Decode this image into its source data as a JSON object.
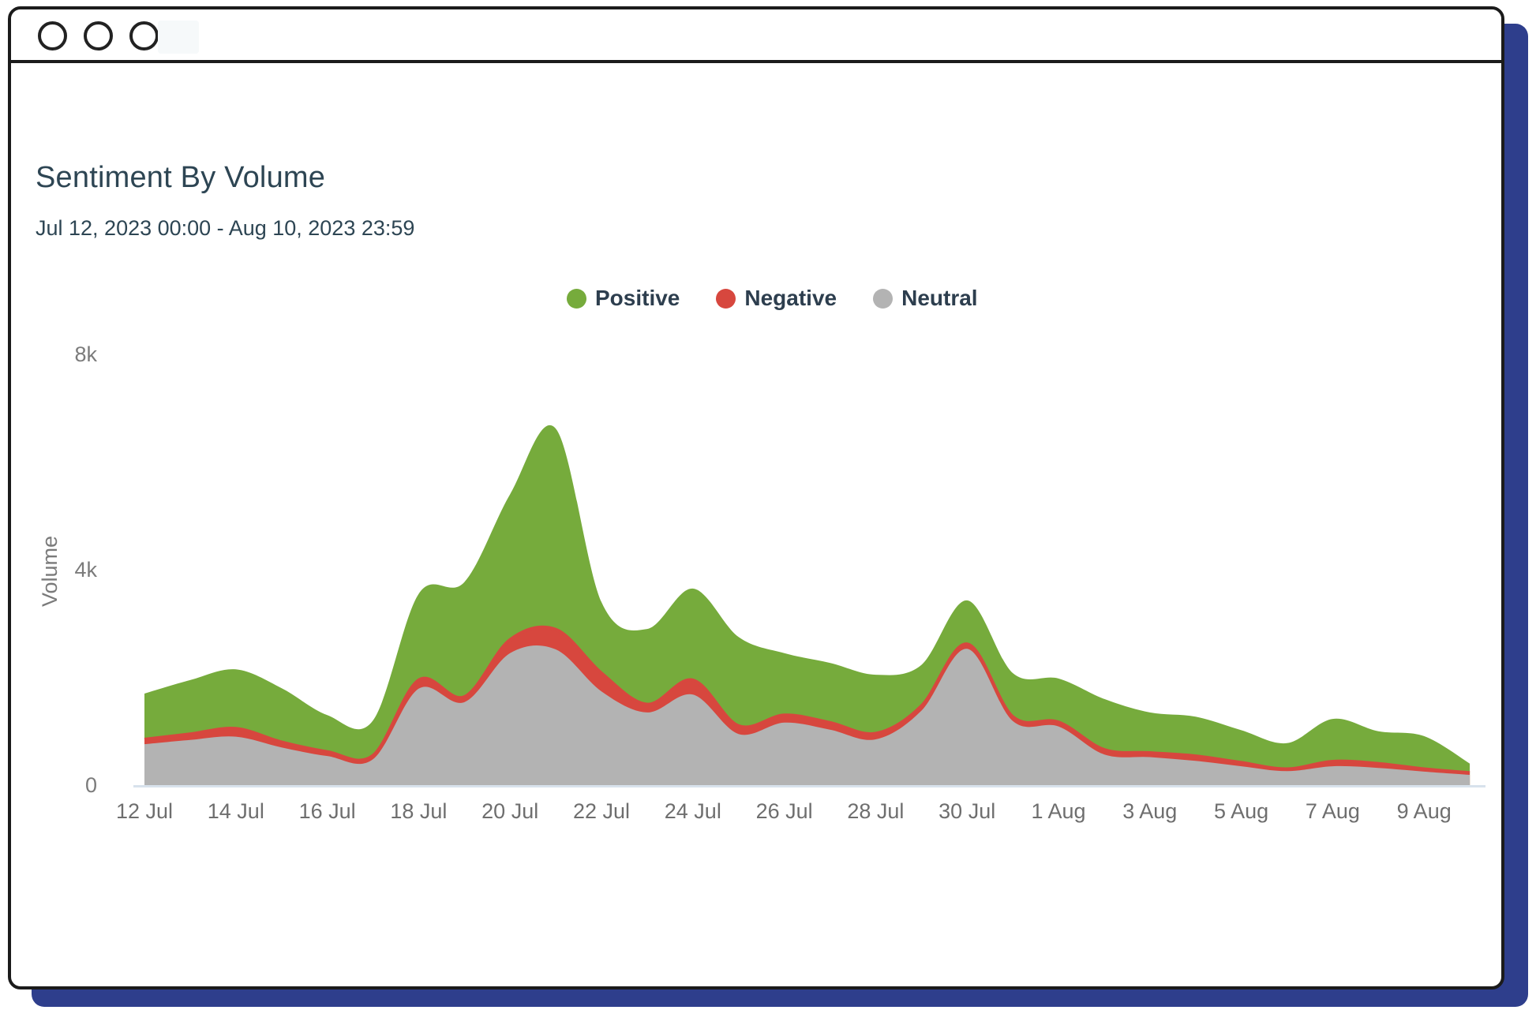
{
  "window": {
    "traffic_lights": [
      "close",
      "minimize",
      "maximize"
    ]
  },
  "header": {
    "title": "Sentiment By Volume",
    "subtitle": "Jul 12, 2023 00:00 - Aug 10, 2023 23:59"
  },
  "legend": [
    {
      "label": "Positive",
      "color": "#76ab3c"
    },
    {
      "label": "Negative",
      "color": "#d7473e"
    },
    {
      "label": "Neutral",
      "color": "#b3b3b3"
    }
  ],
  "colors": {
    "window_border": "#1b1b1b",
    "window_shadow": "#2e3e8c",
    "baseline": "#d8e2ec",
    "title_text": "#2d4553",
    "axis_text": "#6e6e6e"
  },
  "chart_data": {
    "type": "area",
    "stacked": true,
    "smooth": true,
    "grid": false,
    "title": "Sentiment By Volume",
    "xlabel": "",
    "ylabel": "Volume",
    "ylim": [
      0,
      8000
    ],
    "yticks": [
      {
        "label": "0",
        "value": 0
      },
      {
        "label": "4k",
        "value": 4000
      },
      {
        "label": "8k",
        "value": 8000
      }
    ],
    "legend_position": "top-center",
    "categories": [
      "12 Jul",
      "13 Jul",
      "14 Jul",
      "15 Jul",
      "16 Jul",
      "17 Jul",
      "18 Jul",
      "19 Jul",
      "20 Jul",
      "21 Jul",
      "22 Jul",
      "23 Jul",
      "24 Jul",
      "25 Jul",
      "26 Jul",
      "27 Jul",
      "28 Jul",
      "29 Jul",
      "30 Jul",
      "31 Jul",
      "1 Aug",
      "2 Aug",
      "3 Aug",
      "4 Aug",
      "5 Aug",
      "6 Aug",
      "7 Aug",
      "8 Aug",
      "9 Aug",
      "10 Aug"
    ],
    "x_tick_labels": [
      "12 Jul",
      "14 Jul",
      "16 Jul",
      "18 Jul",
      "20 Jul",
      "22 Jul",
      "24 Jul",
      "26 Jul",
      "28 Jul",
      "30 Jul",
      "1 Aug",
      "3 Aug",
      "5 Aug",
      "7 Aug",
      "9 Aug"
    ],
    "series": [
      {
        "name": "Neutral",
        "color": "#b3b3b3",
        "values": [
          760,
          840,
          900,
          700,
          540,
          480,
          1790,
          1540,
          2450,
          2520,
          1740,
          1350,
          1680,
          950,
          1160,
          1030,
          850,
          1380,
          2530,
          1190,
          1090,
          570,
          520,
          450,
          350,
          260,
          350,
          320,
          250,
          190
        ]
      },
      {
        "name": "Negative",
        "color": "#d7473e",
        "values": [
          90,
          110,
          150,
          100,
          80,
          70,
          160,
          100,
          250,
          370,
          340,
          150,
          270,
          150,
          140,
          130,
          110,
          90,
          90,
          80,
          80,
          90,
          80,
          90,
          70,
          40,
          90,
          80,
          50,
          40
        ]
      },
      {
        "name": "Positive",
        "color": "#76ab3c",
        "values": [
          850,
          1000,
          1100,
          1000,
          680,
          650,
          1600,
          2130,
          2700,
          3730,
          1320,
          1400,
          1700,
          1650,
          1150,
          1110,
          1090,
          760,
          810,
          810,
          810,
          940,
          750,
          730,
          600,
          480,
          790,
          600,
          610,
          170
        ]
      }
    ]
  }
}
